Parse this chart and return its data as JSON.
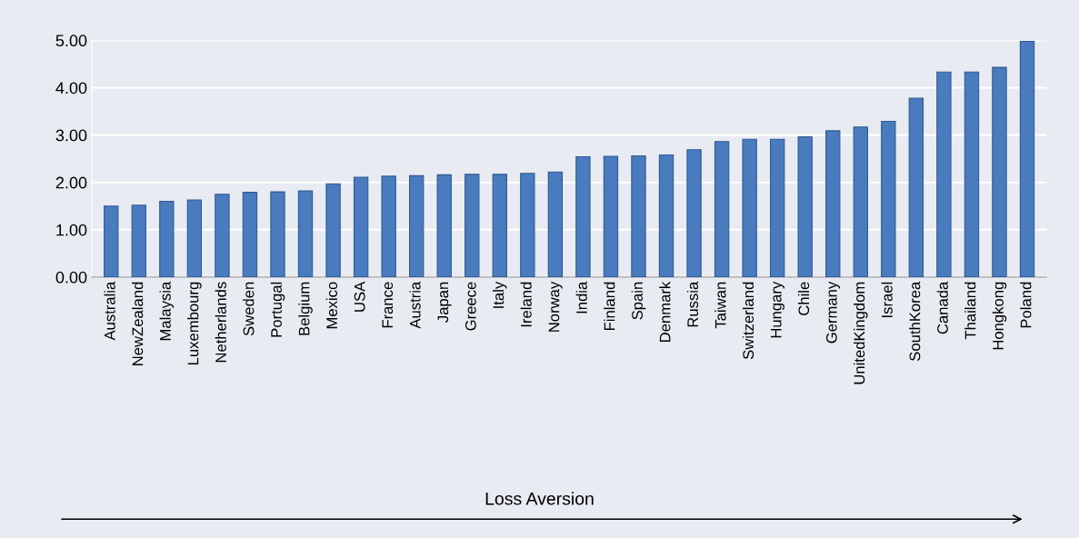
{
  "chart_data": {
    "type": "bar",
    "categories": [
      "Australia",
      "NewZealand",
      "Malaysia",
      "Luxembourg",
      "Netherlands",
      "Sweden",
      "Portugal",
      "Belgium",
      "Mexico",
      "USA",
      "France",
      "Austria",
      "Japan",
      "Greece",
      "Italy",
      "Ireland",
      "Norway",
      "India",
      "Finland",
      "Spain",
      "Denmark",
      "Russia",
      "Taiwan",
      "Switzerland",
      "Hungary",
      "Chile",
      "Germany",
      "UnitedKingdom",
      "Israel",
      "SouthKorea",
      "Canada",
      "Thailand",
      "Hongkong",
      "Poland"
    ],
    "values": [
      1.5,
      1.52,
      1.6,
      1.63,
      1.75,
      1.79,
      1.8,
      1.82,
      1.97,
      2.11,
      2.13,
      2.14,
      2.16,
      2.17,
      2.17,
      2.19,
      2.22,
      2.54,
      2.55,
      2.56,
      2.58,
      2.69,
      2.86,
      2.91,
      2.91,
      2.96,
      3.09,
      3.17,
      3.29,
      3.78,
      4.33,
      4.33,
      4.43,
      4.98
    ],
    "color": "#4a7bbf",
    "ylim": [
      0,
      5
    ],
    "yticks": [
      {
        "value": 0,
        "label": "0.00"
      },
      {
        "value": 1,
        "label": "1.00"
      },
      {
        "value": 2,
        "label": "2.00"
      },
      {
        "value": 3,
        "label": "3.00"
      },
      {
        "value": 4,
        "label": "4.00"
      },
      {
        "value": 5,
        "label": "5.00"
      }
    ],
    "grid": "y",
    "annotations": [
      "Loss Aversion"
    ]
  }
}
